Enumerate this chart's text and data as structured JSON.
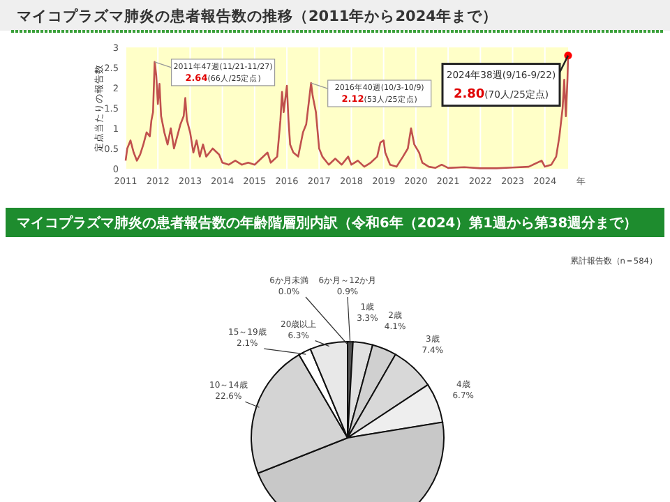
{
  "chart_data": [
    {
      "type": "line",
      "title": "マイコプラズマ肺炎の患者報告数の推移（2011年から2024年まで）",
      "xlabel": "年",
      "ylabel": "定点当たりの報告数",
      "x": [
        2011.0,
        2011.05,
        2011.15,
        2011.25,
        2011.35,
        2011.45,
        2011.55,
        2011.65,
        2011.75,
        2011.8,
        2011.85,
        2011.9,
        2011.95,
        2012.0,
        2012.05,
        2012.1,
        2012.2,
        2012.3,
        2012.4,
        2012.5,
        2012.6,
        2012.7,
        2012.8,
        2012.85,
        2012.9,
        2013.0,
        2013.1,
        2013.2,
        2013.3,
        2013.4,
        2013.5,
        2013.7,
        2013.9,
        2014.0,
        2014.2,
        2014.4,
        2014.6,
        2014.8,
        2015.0,
        2015.2,
        2015.4,
        2015.5,
        2015.7,
        2015.8,
        2015.85,
        2015.9,
        2016.0,
        2016.05,
        2016.1,
        2016.2,
        2016.35,
        2016.5,
        2016.6,
        2016.75,
        2016.8,
        2016.9,
        2017.0,
        2017.1,
        2017.3,
        2017.5,
        2017.7,
        2017.9,
        2018.0,
        2018.2,
        2018.4,
        2018.6,
        2018.8,
        2018.9,
        2019.0,
        2019.05,
        2019.2,
        2019.4,
        2019.6,
        2019.75,
        2019.85,
        2019.95,
        2020.1,
        2020.2,
        2020.4,
        2020.6,
        2020.8,
        2021.0,
        2021.5,
        2022.0,
        2022.5,
        2023.0,
        2023.5,
        2023.9,
        2024.0,
        2024.2,
        2024.35,
        2024.45,
        2024.55,
        2024.6,
        2024.65,
        2024.7,
        2024.72
      ],
      "series": [
        {
          "color": "#c0504d",
          "values": [
            0.2,
            0.5,
            0.7,
            0.4,
            0.2,
            0.35,
            0.6,
            0.9,
            0.8,
            1.2,
            1.4,
            2.64,
            2.3,
            1.6,
            2.1,
            1.3,
            0.9,
            0.6,
            1.0,
            0.5,
            0.8,
            1.1,
            1.3,
            1.75,
            1.2,
            0.9,
            0.4,
            0.7,
            0.3,
            0.6,
            0.3,
            0.5,
            0.35,
            0.15,
            0.1,
            0.2,
            0.1,
            0.15,
            0.1,
            0.25,
            0.4,
            0.15,
            0.3,
            1.2,
            1.9,
            1.4,
            2.05,
            1.2,
            0.6,
            0.4,
            0.3,
            0.9,
            1.1,
            2.12,
            1.8,
            1.4,
            0.5,
            0.3,
            0.1,
            0.25,
            0.1,
            0.3,
            0.1,
            0.2,
            0.05,
            0.15,
            0.3,
            0.65,
            0.7,
            0.4,
            0.1,
            0.05,
            0.3,
            0.5,
            1.0,
            0.6,
            0.4,
            0.15,
            0.05,
            0.02,
            0.1,
            0.02,
            0.04,
            0.01,
            0.01,
            0.03,
            0.05,
            0.2,
            0.05,
            0.1,
            0.3,
            0.8,
            1.5,
            2.2,
            1.3,
            2.2,
            2.8
          ]
        },
        {
          "type": "scatter",
          "x": [
            2024.72
          ],
          "color": "#ff0000",
          "values": [
            2.8
          ]
        }
      ],
      "xlim": [
        2011,
        2024.72
      ],
      "ylim": [
        0,
        3
      ],
      "xticks": [
        2011,
        2012,
        2013,
        2014,
        2015,
        2016,
        2017,
        2018,
        2019,
        2020,
        2021,
        2022,
        2023,
        2024
      ],
      "yticks": [
        0,
        0.5,
        1,
        1.5,
        2,
        2.5,
        3
      ],
      "grid": "x",
      "annotations": [
        {
          "text": "2011年47週(11/21-11/27)\n2.64(66人/25定点)",
          "x": 2011.9,
          "y": 2.64
        },
        {
          "text": "2016年40週(10/3-10/9)\n2.12(53人/25定点)",
          "x": 2016.75,
          "y": 2.12
        },
        {
          "text": "2024年38週(9/16-9/22)\n2.80(70人/25定点)",
          "x": 2024.72,
          "y": 2.8
        }
      ]
    },
    {
      "type": "pie",
      "title": "マイコプラズマ肺炎の患者報告数の年齢階層別内訳（令和6年（2024）第1週から第38週分まで）",
      "annotations": [
        "累計報告数（n＝584）"
      ],
      "categories": [
        "6か月～12か月",
        "1歳",
        "2歳",
        "3歳",
        "4歳",
        null,
        "10～14歳",
        "15～19歳",
        "20歳以上",
        "6か月未満"
      ],
      "values": [
        0.9,
        3.3,
        4.1,
        7.4,
        6.7,
        46.6,
        22.6,
        2.1,
        6.3,
        0.0
      ],
      "value_labels": [
        "0.9%",
        "3.3%",
        "4.1%",
        "7.4%",
        "6.7%",
        null,
        "22.6%",
        "2.1%",
        "6.3%",
        "0.0%"
      ],
      "colors": [
        "#555555",
        "#e0e0e0",
        "#d0d0d0",
        "#d8d8d8",
        "#eeeeee",
        "#c8c8c8",
        "#d4d4d4",
        "#ffffff",
        "#e8e8e8",
        "#ffffff"
      ]
    }
  ]
}
